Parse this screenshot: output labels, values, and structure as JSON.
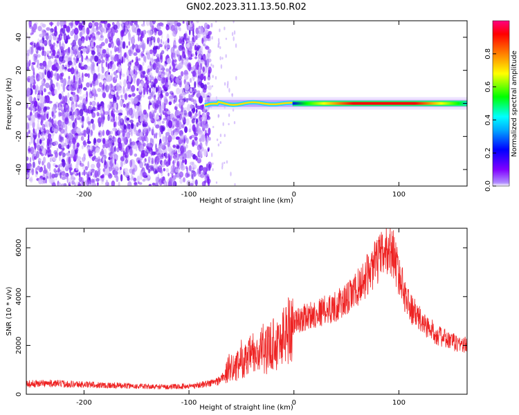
{
  "figure_title": "GN02.2023.311.13.50.R02",
  "chart_data": [
    {
      "type": "heatmap",
      "xlabel": "Height of straight line (km)",
      "ylabel": "Frequency (Hz)",
      "xlim": [
        -255,
        165
      ],
      "ylim": [
        -50,
        50
      ],
      "x_ticks": [
        -200,
        -100,
        0,
        100
      ],
      "x_tick_labels": [
        "-200",
        "-100",
        "0",
        "100"
      ],
      "y_ticks": [
        -40,
        -20,
        0,
        20,
        40
      ],
      "y_tick_labels": [
        "-40",
        "-20",
        "0",
        "20",
        "40"
      ],
      "colorbar": {
        "label": "Normalized spectral amplitude",
        "range": [
          0,
          1
        ],
        "ticks": [
          0.0,
          0.2,
          0.4,
          0.6,
          0.8
        ],
        "tick_labels": [
          "0.0",
          "0.2",
          "0.4",
          "0.6",
          "0.8"
        ],
        "colors": [
          "#ffffff",
          "#8000ff",
          "#0000ff",
          "#00ffff",
          "#00ff00",
          "#ffff00",
          "#ff8000",
          "#ff0000",
          "#ff0080"
        ]
      },
      "regions": {
        "noise_x_range": [
          -255,
          -80
        ],
        "noise_amplitude_range": [
          0.05,
          0.3
        ],
        "signal_x_range": [
          -85,
          165
        ],
        "signal_frequency_hz": 0
      },
      "grid": false
    },
    {
      "type": "line",
      "xlabel": "Height of straight line (km)",
      "ylabel": "SNR (10 * v/v)",
      "xlim": [
        -255,
        165
      ],
      "ylim": [
        0,
        6800
      ],
      "x_ticks": [
        -200,
        -100,
        0,
        100
      ],
      "x_tick_labels": [
        "-200",
        "-100",
        "0",
        "100"
      ],
      "y_ticks": [
        0,
        2000,
        4000,
        6000
      ],
      "y_tick_labels": [
        "0",
        "2000",
        "4000",
        "6000"
      ],
      "color": "#ee2222",
      "grid": false,
      "series": [
        {
          "x": [
            -255,
            -240,
            -220,
            -200,
            -180,
            -160,
            -140,
            -120,
            -100,
            -90,
            -80,
            -72,
            -65,
            -60,
            -55,
            -50,
            -45,
            -40,
            -35,
            -30,
            -25,
            -20,
            -15,
            -10,
            -5,
            0,
            10,
            20,
            30,
            40,
            50,
            60,
            70,
            80,
            85,
            90,
            95,
            100,
            105,
            110,
            120,
            130,
            140,
            150,
            160,
            165
          ],
          "values": [
            420,
            450,
            430,
            400,
            370,
            350,
            310,
            300,
            330,
            380,
            450,
            550,
            800,
            1250,
            1050,
            1500,
            1300,
            1700,
            1500,
            1900,
            1800,
            2150,
            2050,
            2400,
            2700,
            2950,
            3150,
            3300,
            3450,
            3600,
            3850,
            4300,
            4900,
            5500,
            5750,
            5950,
            5750,
            4900,
            4200,
            3600,
            3050,
            2650,
            2350,
            2150,
            2050,
            2000
          ]
        }
      ]
    }
  ]
}
